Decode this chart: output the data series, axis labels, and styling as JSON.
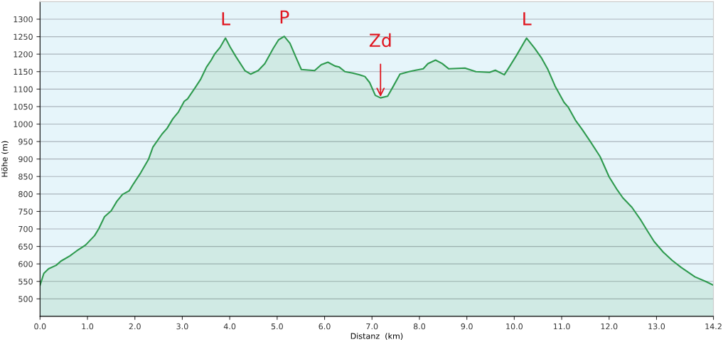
{
  "chart_data": {
    "type": "area",
    "xlabel": "Distanz  (km)",
    "ylabel": "Höhe (m)",
    "x": [
      0,
      0.08,
      0.18,
      0.34,
      0.44,
      0.63,
      0.77,
      0.96,
      1.15,
      1.24,
      1.36,
      1.5,
      1.62,
      1.74,
      1.88,
      1.97,
      2.12,
      2.29,
      2.38,
      2.57,
      2.68,
      2.8,
      2.92,
      3.04,
      3.11,
      3.28,
      3.39,
      3.51,
      3.61,
      3.68,
      3.8,
      3.91,
      4.01,
      4.13,
      4.32,
      4.44,
      4.6,
      4.74,
      4.92,
      5.03,
      5.15,
      5.27,
      5.39,
      5.51,
      5.79,
      5.93,
      6.07,
      6.22,
      6.31,
      6.43,
      6.59,
      6.74,
      6.85,
      6.95,
      7.07,
      7.18,
      7.33,
      7.44,
      7.59,
      7.78,
      7.92,
      8.08,
      8.18,
      8.34,
      8.48,
      8.62,
      8.96,
      9.19,
      9.48,
      9.6,
      9.79,
      9.88,
      10.05,
      10.26,
      10.43,
      10.57,
      10.71,
      10.86,
      11.05,
      11.14,
      11.29,
      11.43,
      11.6,
      11.81,
      12.0,
      12.17,
      12.29,
      12.48,
      12.67,
      12.81,
      12.95,
      13.14,
      13.33,
      13.52,
      13.81,
      14.05,
      14.2
    ],
    "series": [
      {
        "color": "#2e9a4e",
        "values": [
          539,
          573,
          586,
          596,
          608,
          623,
          637,
          654,
          681,
          701,
          735,
          752,
          779,
          799,
          809,
          829,
          860,
          900,
          934,
          971,
          988,
          1015,
          1035,
          1065,
          1072,
          1106,
          1129,
          1163,
          1183,
          1200,
          1220,
          1246,
          1220,
          1193,
          1153,
          1143,
          1153,
          1173,
          1217,
          1241,
          1251,
          1231,
          1193,
          1156,
          1153,
          1170,
          1177,
          1166,
          1163,
          1150,
          1146,
          1141,
          1136,
          1119,
          1082,
          1075,
          1080,
          1106,
          1143,
          1150,
          1154,
          1158,
          1173,
          1183,
          1173,
          1158,
          1160,
          1150,
          1148,
          1154,
          1141,
          1160,
          1197,
          1246,
          1217,
          1190,
          1156,
          1109,
          1062,
          1048,
          1011,
          985,
          951,
          907,
          849,
          812,
          789,
          762,
          725,
          694,
          664,
          634,
          610,
          590,
          563,
          549,
          539
        ]
      }
    ],
    "xlim": [
      0,
      14.2
    ],
    "ylim": [
      450,
      1350
    ],
    "xticks": [
      {
        "value": 0,
        "label": "0.0"
      },
      {
        "value": 1,
        "label": "1.0"
      },
      {
        "value": 2,
        "label": "2.0"
      },
      {
        "value": 3,
        "label": "3.0"
      },
      {
        "value": 4,
        "label": "4.0"
      },
      {
        "value": 5,
        "label": "5.0"
      },
      {
        "value": 6,
        "label": "6.0"
      },
      {
        "value": 7,
        "label": "7.0"
      },
      {
        "value": 8,
        "label": "8.0"
      },
      {
        "value": 9,
        "label": "9.0"
      },
      {
        "value": 10,
        "label": "10.0"
      },
      {
        "value": 11,
        "label": "11.0"
      },
      {
        "value": 12,
        "label": "12.0"
      },
      {
        "value": 13,
        "label": "13.0"
      },
      {
        "value": 14.2,
        "label": "14.2"
      }
    ],
    "yticks": [
      500,
      550,
      600,
      650,
      700,
      750,
      800,
      850,
      900,
      950,
      1000,
      1050,
      1100,
      1150,
      1200,
      1250,
      1300
    ],
    "grid": "y",
    "annotations": [
      {
        "text": "L",
        "x": 3.91,
        "y": 1246
      },
      {
        "text": "P",
        "x": 5.15,
        "y": 1251
      },
      {
        "text": "Zd",
        "x": 7.18,
        "y": 1075
      },
      {
        "text": "L",
        "x": 10.26,
        "y": 1246
      }
    ]
  }
}
